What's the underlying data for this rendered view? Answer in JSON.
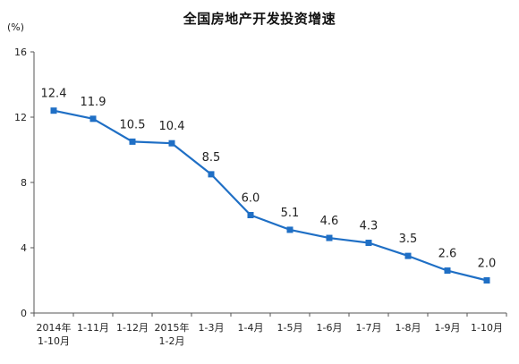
{
  "chart_data": {
    "type": "line",
    "title": "全国房地产开发投资增速",
    "unit": "(%)",
    "categories": [
      [
        "2014年",
        "1-10月"
      ],
      [
        "1-11月"
      ],
      [
        "1-12月"
      ],
      [
        "2015年",
        "1-2月"
      ],
      [
        "1-3月"
      ],
      [
        "1-4月"
      ],
      [
        "1-5月"
      ],
      [
        "1-6月"
      ],
      [
        "1-7月"
      ],
      [
        "1-8月"
      ],
      [
        "1-9月"
      ],
      [
        "1-10月"
      ]
    ],
    "values": [
      12.4,
      11.9,
      10.5,
      10.4,
      8.5,
      6.0,
      5.1,
      4.6,
      4.3,
      3.5,
      2.6,
      2.0
    ],
    "value_labels": [
      "12.4",
      "11.9",
      "10.5",
      "10.4",
      "8.5",
      "6.0",
      "5.1",
      "4.6",
      "4.3",
      "3.5",
      "2.6",
      "2.0"
    ],
    "ylim": [
      0,
      16
    ],
    "yticks": [
      0,
      4,
      8,
      12,
      16
    ],
    "grid": false,
    "legend": "none",
    "line_color": "#1F6FC5",
    "marker_color": "#1F6FC5"
  }
}
